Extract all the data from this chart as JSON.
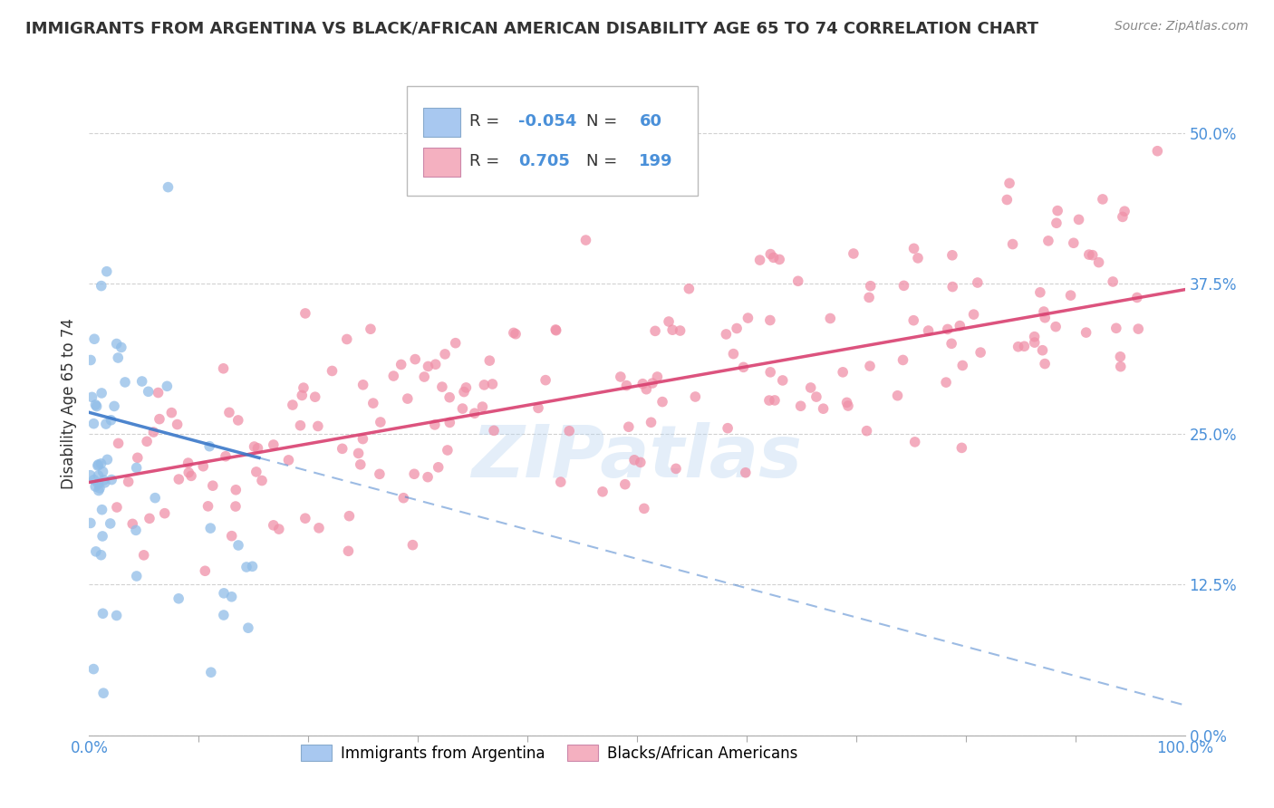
{
  "title": "IMMIGRANTS FROM ARGENTINA VS BLACK/AFRICAN AMERICAN DISABILITY AGE 65 TO 74 CORRELATION CHART",
  "source": "Source: ZipAtlas.com",
  "ylabel": "Disability Age 65 to 74",
  "xlim": [
    0.0,
    1.0
  ],
  "ylim": [
    0.0,
    0.55
  ],
  "yticks": [
    0.0,
    0.125,
    0.25,
    0.375,
    0.5
  ],
  "ytick_labels": [
    "0.0%",
    "12.5%",
    "25.0%",
    "37.5%",
    "50.0%"
  ],
  "xtick_labels": [
    "0.0%",
    "100.0%"
  ],
  "legend_R_blue": "-0.054",
  "legend_N_blue": "60",
  "legend_R_pink": "0.705",
  "legend_N_pink": "199",
  "blue_legend_color": "#a8c8f0",
  "pink_legend_color": "#f4b0c0",
  "blue_line_color": "#3a78c9",
  "pink_line_color": "#d94070",
  "watermark": "ZIPatlas",
  "blue_dot_color": "#90bde8",
  "pink_dot_color": "#f090a8",
  "grid_color": "#cccccc",
  "text_color": "#333333",
  "axis_label_color": "#4a90d9",
  "title_fontsize": 13,
  "axis_fontsize": 12,
  "legend_fontsize": 13
}
